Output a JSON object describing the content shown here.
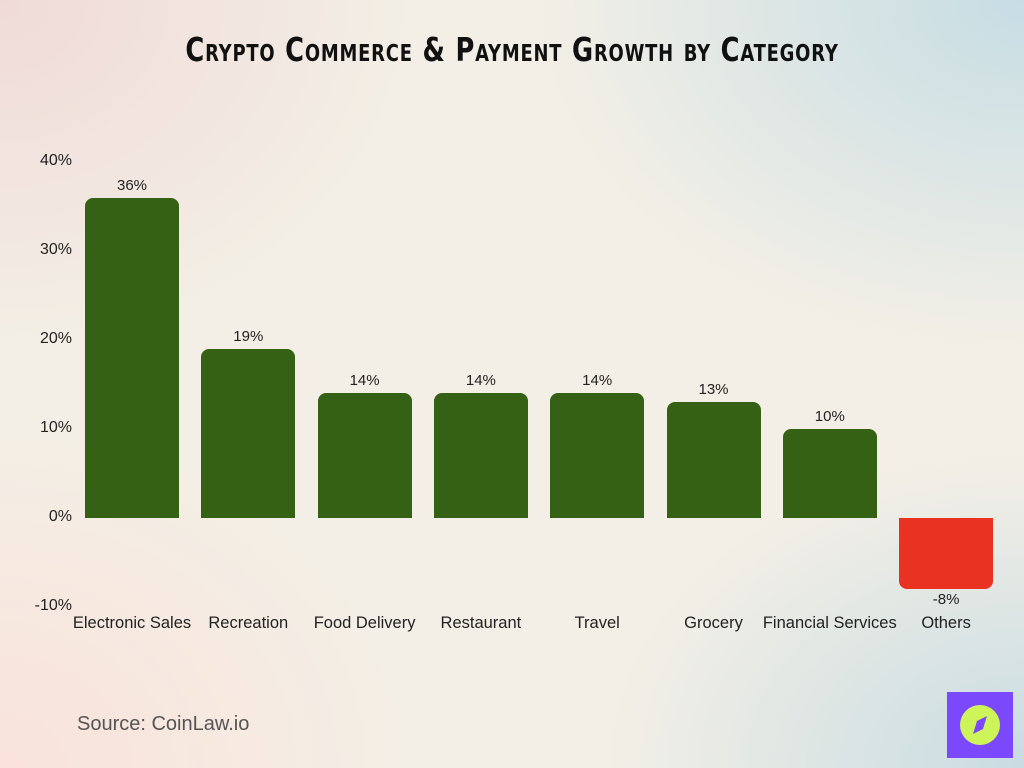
{
  "title": "Crypto Commerce & Payment Growth by Category",
  "source": "Source: CoinLaw.io",
  "colors": {
    "positive_bar": "#346113",
    "negative_bar": "#e93222",
    "logo_bg": "#7b49fb",
    "logo_fg": "#cdf55a"
  },
  "logo": {
    "icon": "compass-icon"
  },
  "y_ticks": [
    "40%",
    "30%",
    "20%",
    "10%",
    "0%",
    "-10%"
  ],
  "bars": [
    {
      "label": "Electronic Sales",
      "value_label": "36%"
    },
    {
      "label": "Recreation",
      "value_label": "19%"
    },
    {
      "label": "Food Delivery",
      "value_label": "14%"
    },
    {
      "label": "Restaurant",
      "value_label": "14%"
    },
    {
      "label": "Travel",
      "value_label": "14%"
    },
    {
      "label": "Grocery",
      "value_label": "13%"
    },
    {
      "label": "Financial Services",
      "value_label": "10%"
    },
    {
      "label": "Others",
      "value_label": "-8%"
    }
  ],
  "chart_data": {
    "type": "bar",
    "title": "Crypto Commerce & Payment Growth by Category",
    "categories": [
      "Electronic Sales",
      "Recreation",
      "Food Delivery",
      "Restaurant",
      "Travel",
      "Grocery",
      "Financial Services",
      "Others"
    ],
    "values": [
      36,
      19,
      14,
      14,
      14,
      13,
      10,
      -8
    ],
    "unit": "%",
    "xlabel": "",
    "ylabel": "",
    "ylim": [
      -10,
      40
    ],
    "yticks": [
      -10,
      0,
      10,
      20,
      30,
      40
    ],
    "grid": false,
    "legend": null,
    "data_labels": true,
    "source": "Source: CoinLaw.io"
  }
}
